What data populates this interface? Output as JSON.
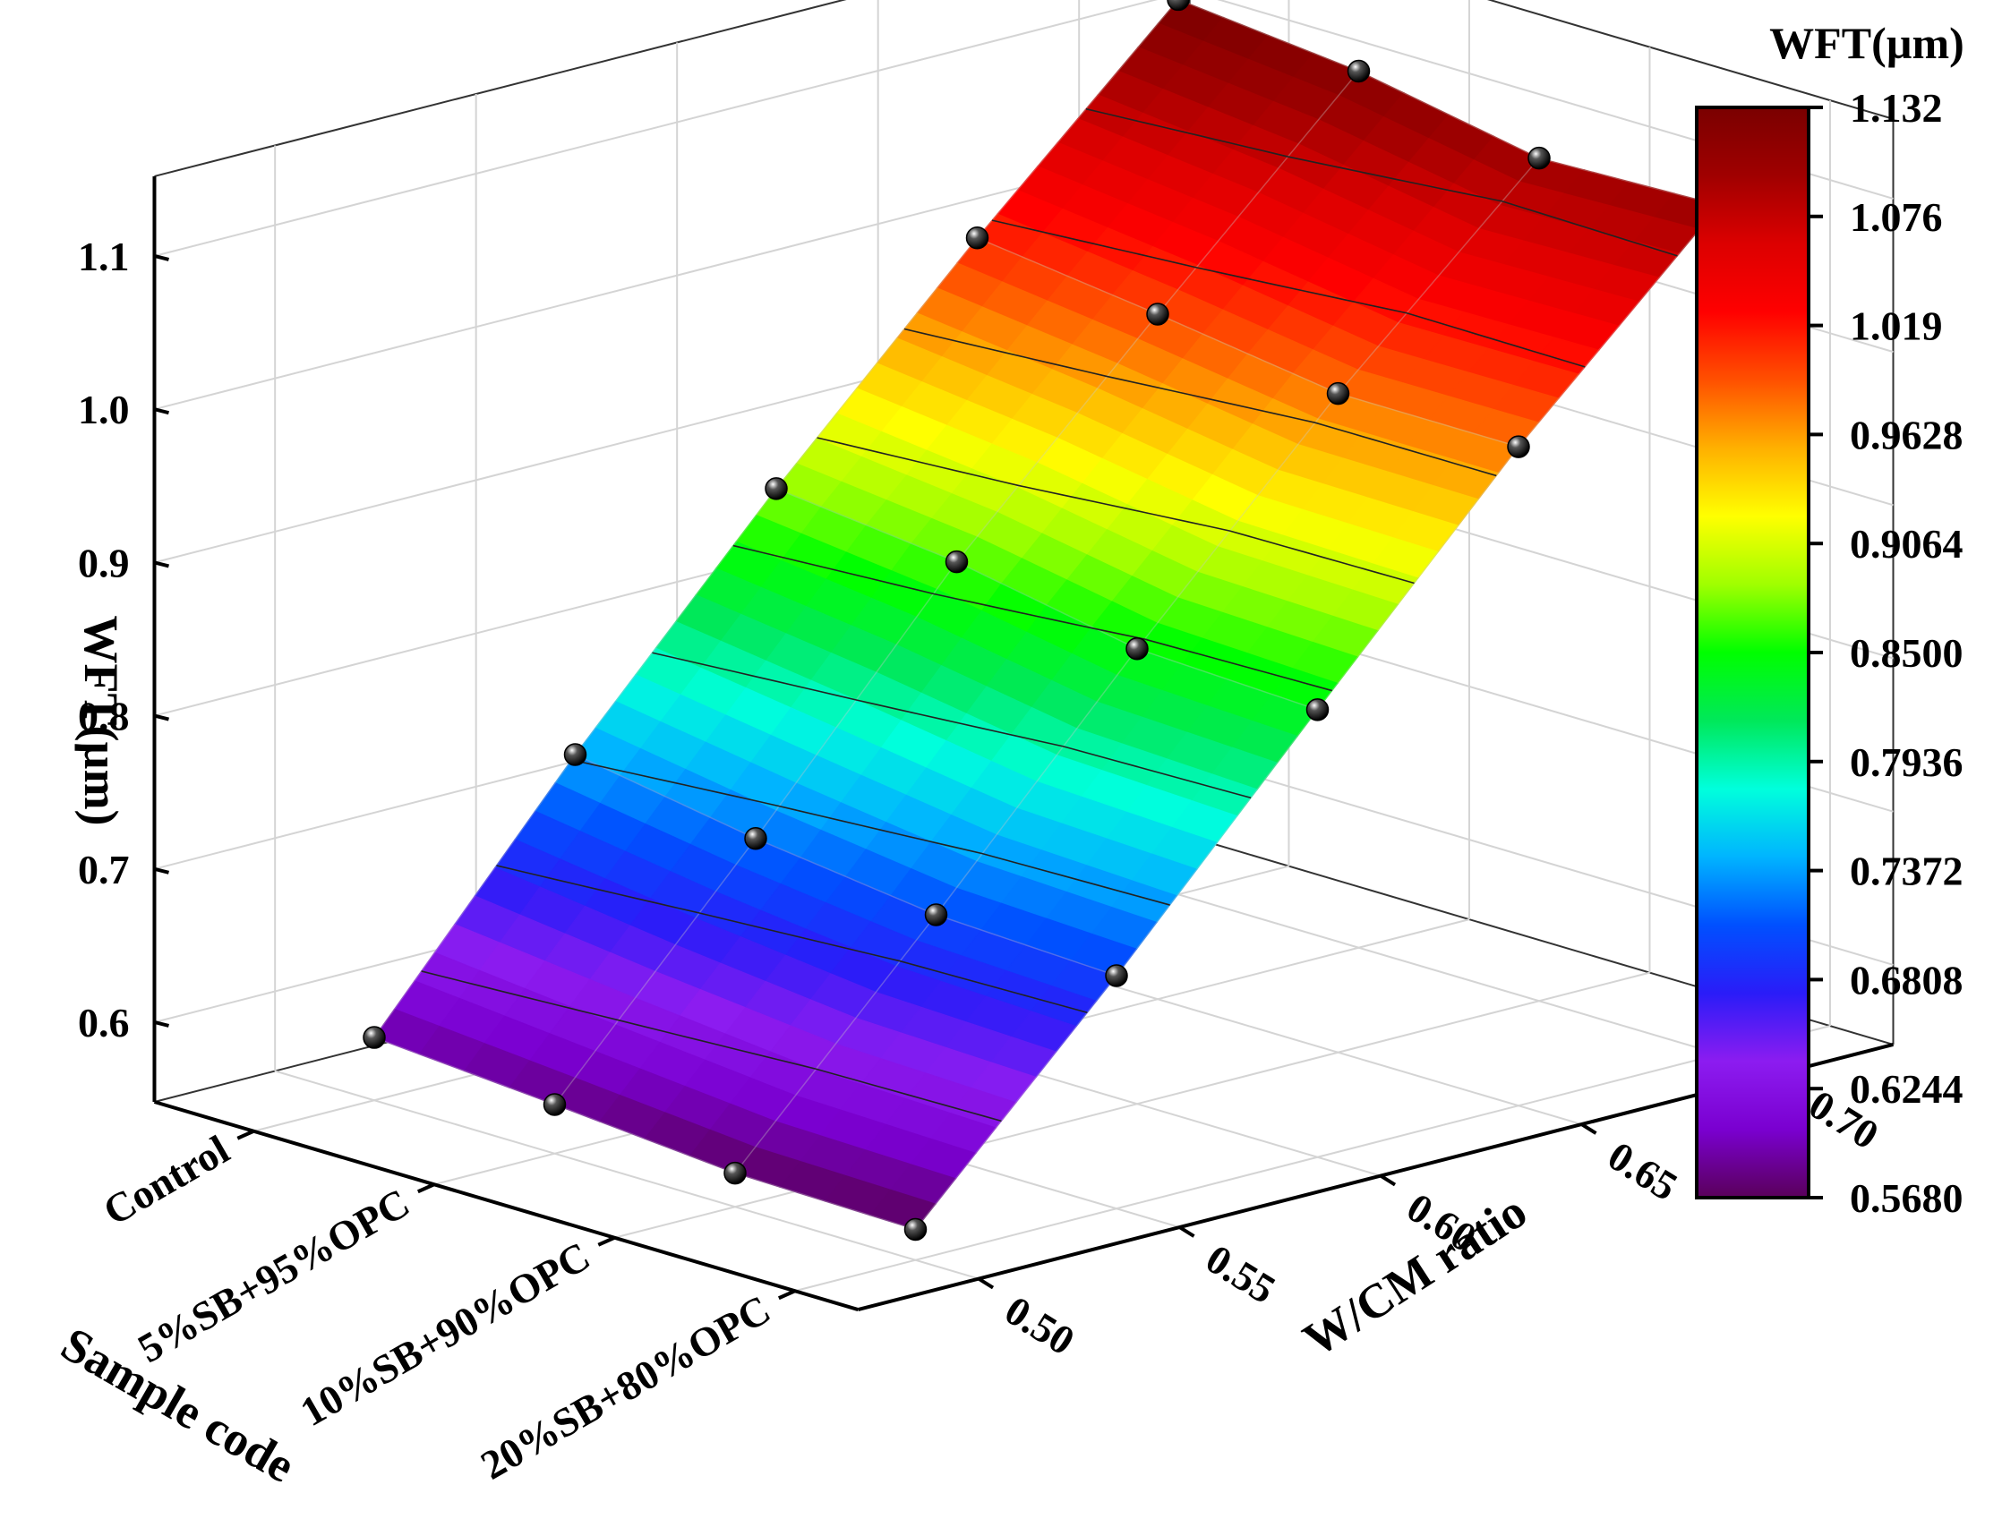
{
  "chart_data": {
    "type": "surface3d",
    "zlabel": "WFT(µm)",
    "xlabel": "Sample code",
    "ylabel": "W/CM ratio",
    "x_categories": [
      "Control",
      "5%SB+95%OPC",
      "10%SB+90%OPC",
      "20%SB+80%OPC"
    ],
    "y_ticks": [
      "0.50",
      "0.55",
      "0.60",
      "0.65",
      "0.70"
    ],
    "z_ticks": [
      "0.6",
      "0.7",
      "0.8",
      "0.9",
      "1.0",
      "1.1"
    ],
    "w_cm_values": [
      0.5,
      0.55,
      0.6,
      0.65,
      0.7
    ],
    "zlim": [
      0.56,
      1.15
    ],
    "points": [
      {
        "sample": "Control",
        "w_cm": 0.5,
        "wft": 0.589
      },
      {
        "sample": "5%SB+95%OPC",
        "w_cm": 0.5,
        "wft": 0.58
      },
      {
        "sample": "10%SB+90%OPC",
        "w_cm": 0.5,
        "wft": 0.57
      },
      {
        "sample": "20%SB+80%OPC",
        "w_cm": 0.5,
        "wft": 0.568
      },
      {
        "sample": "Control",
        "w_cm": 0.55,
        "wft": 0.74
      },
      {
        "sample": "5%SB+95%OPC",
        "w_cm": 0.55,
        "wft": 0.72
      },
      {
        "sample": "10%SB+90%OPC",
        "w_cm": 0.55,
        "wft": 0.705
      },
      {
        "sample": "20%SB+80%OPC",
        "w_cm": 0.55,
        "wft": 0.7
      },
      {
        "sample": "Control",
        "w_cm": 0.6,
        "wft": 0.88
      },
      {
        "sample": "5%SB+95%OPC",
        "w_cm": 0.6,
        "wft": 0.867
      },
      {
        "sample": "10%SB+90%OPC",
        "w_cm": 0.6,
        "wft": 0.845
      },
      {
        "sample": "20%SB+80%OPC",
        "w_cm": 0.6,
        "wft": 0.84
      },
      {
        "sample": "Control",
        "w_cm": 0.65,
        "wft": 1.01
      },
      {
        "sample": "5%SB+95%OPC",
        "w_cm": 0.65,
        "wft": 0.995
      },
      {
        "sample": "10%SB+90%OPC",
        "w_cm": 0.65,
        "wft": 0.978
      },
      {
        "sample": "20%SB+80%OPC",
        "w_cm": 0.65,
        "wft": 0.978
      },
      {
        "sample": "Control",
        "w_cm": 0.7,
        "wft": 1.132
      },
      {
        "sample": "5%SB+95%OPC",
        "w_cm": 0.7,
        "wft": 1.12
      },
      {
        "sample": "10%SB+90%OPC",
        "w_cm": 0.7,
        "wft": 1.098
      },
      {
        "sample": "20%SB+80%OPC",
        "w_cm": 0.7,
        "wft": 1.102
      }
    ],
    "colorbar": {
      "title": "WFT(µm)",
      "min": 0.568,
      "max": 1.132,
      "tick_labels": [
        "1.132",
        "1.076",
        "1.019",
        "0.9628",
        "0.9064",
        "0.8500",
        "0.7936",
        "0.7372",
        "0.6808",
        "0.6244",
        "0.5680"
      ],
      "colors": [
        "#5a005a",
        "#7a00d0",
        "#8c1cf0",
        "#2a1cf8",
        "#0050ff",
        "#00b4ff",
        "#00ffdc",
        "#00e85a",
        "#00ff00",
        "#a0ff00",
        "#ffff00",
        "#ffb000",
        "#ff5000",
        "#ff0000",
        "#dc0000",
        "#a00000",
        "#7a0000"
      ]
    },
    "grid": true
  }
}
